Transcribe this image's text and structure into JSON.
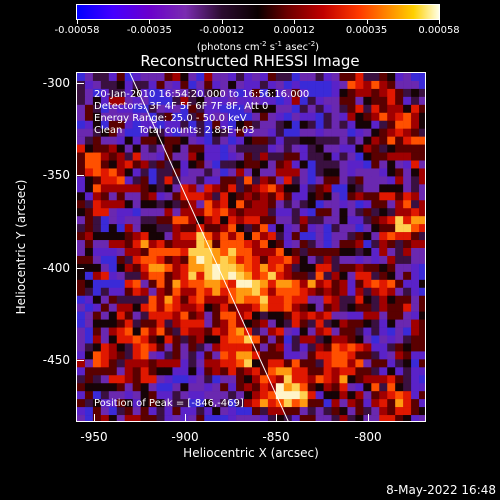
{
  "colorbar": {
    "tick_labels": [
      "-0.00058",
      "-0.00035",
      "-0.00012",
      "0.00012",
      "0.00035",
      "0.00058"
    ],
    "units": "(photons cm-2 s-1 asec-2)"
  },
  "plot": {
    "title": "Reconstructed RHESSI Image",
    "info_lines": [
      "20-Jan-2010 16:54:20.000 to 16:56:16.000",
      "Detectors: 3F 4F 5F 6F 7F 8F, Att 0",
      "Energy Range: 25.0 - 50.0 keV",
      "Clean     Total counts: 2.83E+03"
    ],
    "peak_label": "Position of Peak = [-846,-469]",
    "xlabel": "Heliocentric X (arcsec)",
    "ylabel": "Heliocentric Y (arcsec)",
    "x_ticks": [
      "-950",
      "-900",
      "-850",
      "-800"
    ],
    "y_ticks": [
      "-300",
      "-350",
      "-400",
      "-450"
    ]
  },
  "footer": {
    "timestamp": "8-May-2022 16:48"
  }
}
